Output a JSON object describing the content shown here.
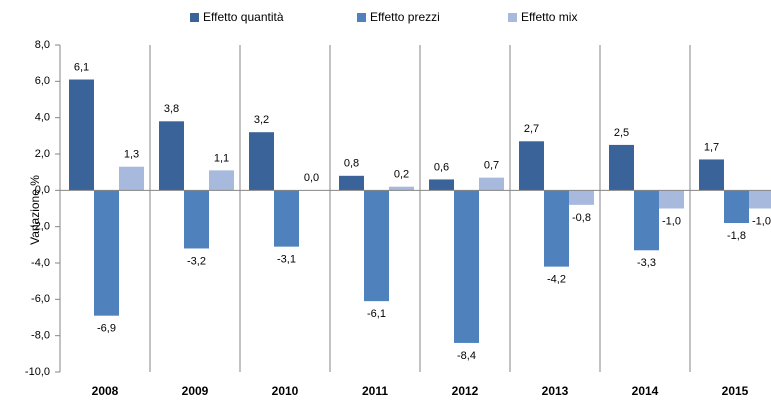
{
  "chart_data": {
    "type": "bar",
    "y_label": "Variazione %",
    "categories": [
      "2008",
      "2009",
      "2010",
      "2011",
      "2012",
      "2013",
      "2014",
      "2015"
    ],
    "series": [
      {
        "name": "Effetto quantità",
        "color": "#3a6399",
        "values": [
          6.1,
          3.8,
          3.2,
          0.8,
          0.6,
          2.7,
          2.5,
          1.7
        ],
        "value_labels": [
          "6,1",
          "3,8",
          "3,2",
          "0,8",
          "0,6",
          "2,7",
          "2,5",
          "1,7"
        ]
      },
      {
        "name": "Effetto prezzi",
        "color": "#4f81bd",
        "values": [
          -6.9,
          -3.2,
          -3.1,
          -6.1,
          -8.4,
          -4.2,
          -3.3,
          -1.8
        ],
        "value_labels": [
          "-6,9",
          "-3,2",
          "-3,1",
          "-6,1",
          "-8,4",
          "-4,2",
          "-3,3",
          "-1,8"
        ]
      },
      {
        "name": "Effetto mix",
        "color": "#a7b9dc",
        "values": [
          1.3,
          1.1,
          0.0,
          0.2,
          0.7,
          -0.8,
          -1.0,
          -1.0
        ],
        "value_labels": [
          "1,3",
          "1,1",
          "0,0",
          "0,2",
          "0,7",
          "-0,8",
          "-1,0",
          "-1,0"
        ]
      }
    ],
    "ylim": [
      -10,
      8
    ],
    "yticks": [
      {
        "value": -10,
        "label": "-10,0"
      },
      {
        "value": -8,
        "label": "-8,0"
      },
      {
        "value": -6,
        "label": "-6,0"
      },
      {
        "value": -4,
        "label": "-4,0"
      },
      {
        "value": -2,
        "label": "-2,0"
      },
      {
        "value": 0,
        "label": "0,0"
      },
      {
        "value": 2,
        "label": "2,0"
      },
      {
        "value": 4,
        "label": "4,0"
      },
      {
        "value": 6,
        "label": "6,0"
      },
      {
        "value": 8,
        "label": "8,0"
      }
    ],
    "legend": "top"
  }
}
